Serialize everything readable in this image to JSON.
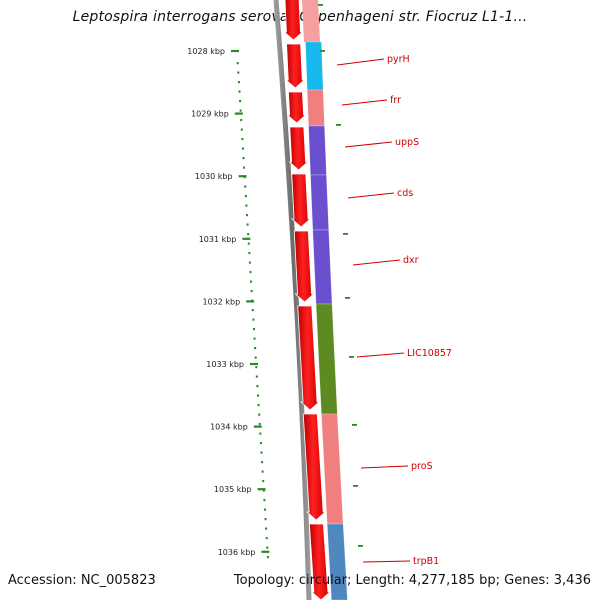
{
  "title": "Leptospira interrogans serovar Copenhageni str. Fiocruz L1-1...",
  "footer": {
    "accession": "Accession: NC_005823",
    "topology": "Topology: circular; Length: 4,277,185 bp; Genes: 3,436"
  },
  "axis": {
    "unit": "kbp",
    "ticks": [
      "1028 kbp",
      "1029 kbp",
      "1030 kbp",
      "1031 kbp",
      "1032 kbp",
      "1033 kbp",
      "1034 kbp",
      "1035 kbp",
      "1036 kbp"
    ]
  },
  "colors": {
    "forward_arrow": "#ff0000",
    "dotted_gc": "#2a8a2a",
    "label_line": "#d00000",
    "backbone": "#7a7a7a"
  },
  "genes": [
    {
      "name": "pyrH",
      "color": "#17b8ee"
    },
    {
      "name": "frr",
      "color": "#f08080"
    },
    {
      "name": "uppS",
      "color": "#6a4fcf"
    },
    {
      "name": "cds",
      "color": "#6a4fcf"
    },
    {
      "name": "dxr",
      "color": "#6a4fcf"
    },
    {
      "name": "LIC10857",
      "color": "#5e8a22"
    },
    {
      "name": "proS",
      "color": "#f08080"
    },
    {
      "name": "trpB1",
      "color": "#4f88bf"
    }
  ]
}
